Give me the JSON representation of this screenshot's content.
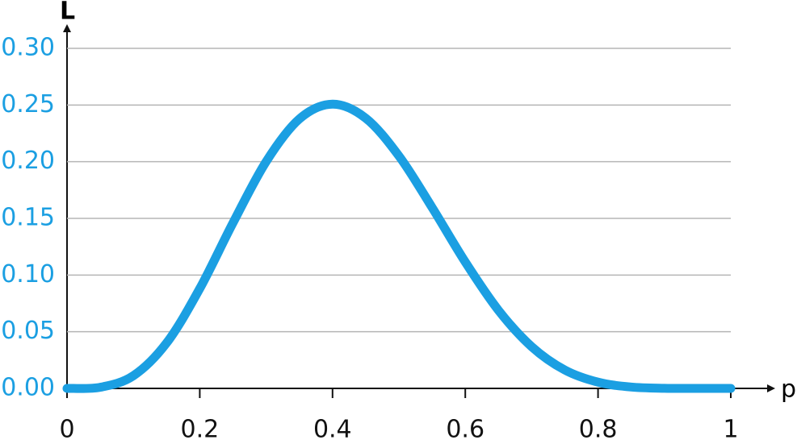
{
  "chart_data": {
    "type": "line",
    "x_label": "p",
    "y_label": "L",
    "x": [
      0,
      0.05,
      0.1,
      0.15,
      0.2,
      0.25,
      0.3,
      0.35,
      0.4,
      0.45,
      0.5,
      0.55,
      0.6,
      0.65,
      0.7,
      0.75,
      0.8,
      0.85,
      0.9,
      0.95,
      1
    ],
    "series": [
      {
        "color": "#1b9fe2",
        "values": [
          0,
          0.001,
          0.0112,
          0.0401,
          0.0881,
          0.146,
          0.2001,
          0.2377,
          0.2508,
          0.2384,
          0.2051,
          0.1596,
          0.1115,
          0.0689,
          0.0368,
          0.0162,
          0.0055,
          0.0012,
          0.0001,
          0,
          0
        ]
      }
    ],
    "xlim": [
      0,
      1
    ],
    "xticks": [
      0,
      0.2,
      0.4,
      0.6,
      0.8,
      1
    ],
    "ylim": [
      0,
      0.3
    ],
    "yticks": [
      {
        "value": 0,
        "label": "0.00"
      },
      {
        "value": 0.05,
        "label": "0.05"
      },
      {
        "value": 0.1,
        "label": "0.10"
      },
      {
        "value": 0.15,
        "label": "0.15"
      },
      {
        "value": 0.2,
        "label": "0.20"
      },
      {
        "value": 0.25,
        "label": "0.25"
      },
      {
        "value": 0.3,
        "label": "0.30"
      }
    ],
    "ytick_color": "#1b9fe2",
    "grid": true
  }
}
